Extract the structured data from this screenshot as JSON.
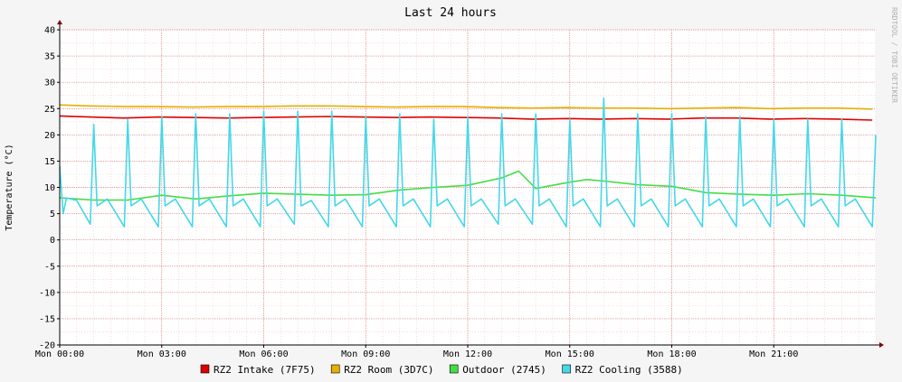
{
  "chart_data": {
    "type": "line",
    "title": "Last 24 hours",
    "ylabel": "Temperature (°C)",
    "watermark": "RRDTOOL / TOBI OETIKER",
    "ylim": [
      -20,
      40
    ],
    "y_ticks": [
      40,
      35,
      30,
      25,
      20,
      15,
      10,
      5,
      0,
      -5,
      -10,
      -15,
      -20
    ],
    "xlim_hours": [
      0,
      24
    ],
    "x_ticks": [
      {
        "hour": 0,
        "label": "Mon 00:00"
      },
      {
        "hour": 3,
        "label": "Mon 03:00"
      },
      {
        "hour": 6,
        "label": "Mon 06:00"
      },
      {
        "hour": 9,
        "label": "Mon 09:00"
      },
      {
        "hour": 12,
        "label": "Mon 12:00"
      },
      {
        "hour": 15,
        "label": "Mon 15:00"
      },
      {
        "hour": 18,
        "label": "Mon 18:00"
      },
      {
        "hour": 21,
        "label": "Mon 21:00"
      }
    ],
    "grid": true,
    "legend_position": "bottom",
    "series": [
      {
        "name": "RZ2 Intake (7F75)",
        "color": "#DD0000",
        "x": [
          0,
          0.9,
          1.9,
          2.9,
          3.9,
          4.9,
          5.9,
          6.9,
          7.9,
          8.9,
          9.9,
          10.9,
          11.9,
          12.9,
          13.9,
          14.9,
          15.9,
          16.9,
          17.9,
          18.9,
          19.9,
          20.9,
          21.9,
          22.9,
          23.9
        ],
        "y": [
          23.6,
          23.4,
          23.2,
          23.4,
          23.3,
          23.2,
          23.3,
          23.4,
          23.5,
          23.4,
          23.3,
          23.4,
          23.3,
          23.2,
          23.0,
          23.1,
          23.0,
          23.1,
          23.0,
          23.2,
          23.2,
          23.0,
          23.1,
          23.0,
          22.8
        ]
      },
      {
        "name": "RZ2 Room (3D7C)",
        "color": "#E6AF00",
        "x": [
          0,
          0.9,
          1.9,
          2.9,
          3.9,
          4.9,
          5.9,
          6.9,
          7.9,
          8.9,
          9.9,
          10.9,
          11.9,
          12.9,
          13.9,
          14.9,
          15.9,
          16.9,
          17.9,
          18.9,
          19.9,
          20.9,
          21.9,
          22.9,
          23.9
        ],
        "y": [
          25.7,
          25.5,
          25.4,
          25.4,
          25.3,
          25.4,
          25.4,
          25.5,
          25.5,
          25.4,
          25.3,
          25.4,
          25.4,
          25.2,
          25.1,
          25.2,
          25.1,
          25.1,
          25.0,
          25.1,
          25.2,
          25.0,
          25.1,
          25.1,
          24.9
        ]
      },
      {
        "name": "Outdoor (2745)",
        "color": "#44DD44",
        "x": [
          0,
          1,
          2,
          3,
          4,
          5,
          6,
          7,
          8,
          9,
          10,
          11,
          12,
          13,
          13.5,
          14,
          15,
          15.5,
          16,
          17,
          18,
          19,
          20,
          21,
          22,
          23,
          24
        ],
        "y": [
          8.0,
          7.6,
          7.6,
          8.5,
          7.8,
          8.4,
          8.9,
          8.7,
          8.5,
          8.6,
          9.5,
          10.0,
          10.4,
          11.8,
          13.1,
          9.8,
          11.0,
          11.5,
          11.2,
          10.5,
          10.2,
          9.0,
          8.7,
          8.5,
          8.8,
          8.5,
          8.0
        ]
      },
      {
        "name": "RZ2 Cooling (3588)",
        "color": "#44D8E8",
        "x": [
          0,
          0.1,
          0.2,
          0.5,
          0.9,
          1.0,
          1.1,
          1.4,
          1.9,
          2.0,
          2.1,
          2.4,
          2.9,
          3.0,
          3.1,
          3.4,
          3.9,
          4.0,
          4.1,
          4.4,
          4.9,
          5.0,
          5.1,
          5.4,
          5.9,
          6.0,
          6.1,
          6.4,
          6.9,
          7.0,
          7.1,
          7.4,
          7.9,
          8.0,
          8.1,
          8.4,
          8.9,
          9.0,
          9.1,
          9.4,
          9.9,
          10.0,
          10.1,
          10.4,
          10.9,
          11.0,
          11.1,
          11.4,
          11.9,
          12.0,
          12.1,
          12.4,
          12.9,
          13.0,
          13.1,
          13.4,
          13.9,
          14.0,
          14.1,
          14.4,
          14.9,
          15.0,
          15.1,
          15.4,
          15.9,
          16.0,
          16.1,
          16.4,
          16.9,
          17.0,
          17.1,
          17.4,
          17.9,
          18.0,
          18.1,
          18.4,
          18.9,
          19.0,
          19.1,
          19.4,
          19.9,
          20.0,
          20.1,
          20.4,
          20.9,
          21.0,
          21.1,
          21.4,
          21.9,
          22.0,
          22.1,
          22.4,
          22.9,
          23.0,
          23.1,
          23.4,
          23.9,
          24.0
        ],
        "y": [
          14.0,
          5.0,
          8.0,
          7.5,
          3.0,
          22.0,
          6.5,
          7.8,
          2.5,
          23.0,
          6.5,
          7.8,
          2.5,
          23.5,
          6.5,
          7.8,
          2.5,
          24.0,
          6.5,
          7.8,
          2.5,
          24.0,
          6.5,
          7.8,
          2.5,
          24.5,
          6.5,
          7.8,
          3.0,
          24.5,
          6.5,
          7.5,
          2.5,
          24.5,
          6.5,
          7.8,
          2.5,
          23.5,
          6.5,
          7.8,
          2.5,
          24.0,
          6.5,
          7.8,
          2.5,
          23.0,
          6.5,
          7.8,
          2.5,
          23.5,
          6.5,
          7.8,
          3.0,
          24.0,
          6.5,
          7.8,
          3.0,
          24.0,
          6.5,
          7.8,
          2.5,
          23.0,
          6.5,
          7.8,
          2.5,
          27.0,
          6.5,
          7.8,
          2.5,
          24.0,
          6.5,
          7.8,
          2.5,
          24.0,
          6.5,
          7.8,
          2.5,
          23.5,
          6.5,
          7.8,
          2.5,
          23.5,
          6.5,
          7.8,
          2.5,
          23.0,
          6.5,
          7.8,
          2.5,
          23.0,
          6.5,
          7.8,
          2.5,
          23.0,
          6.5,
          7.8,
          2.5,
          20.0
        ]
      }
    ]
  }
}
